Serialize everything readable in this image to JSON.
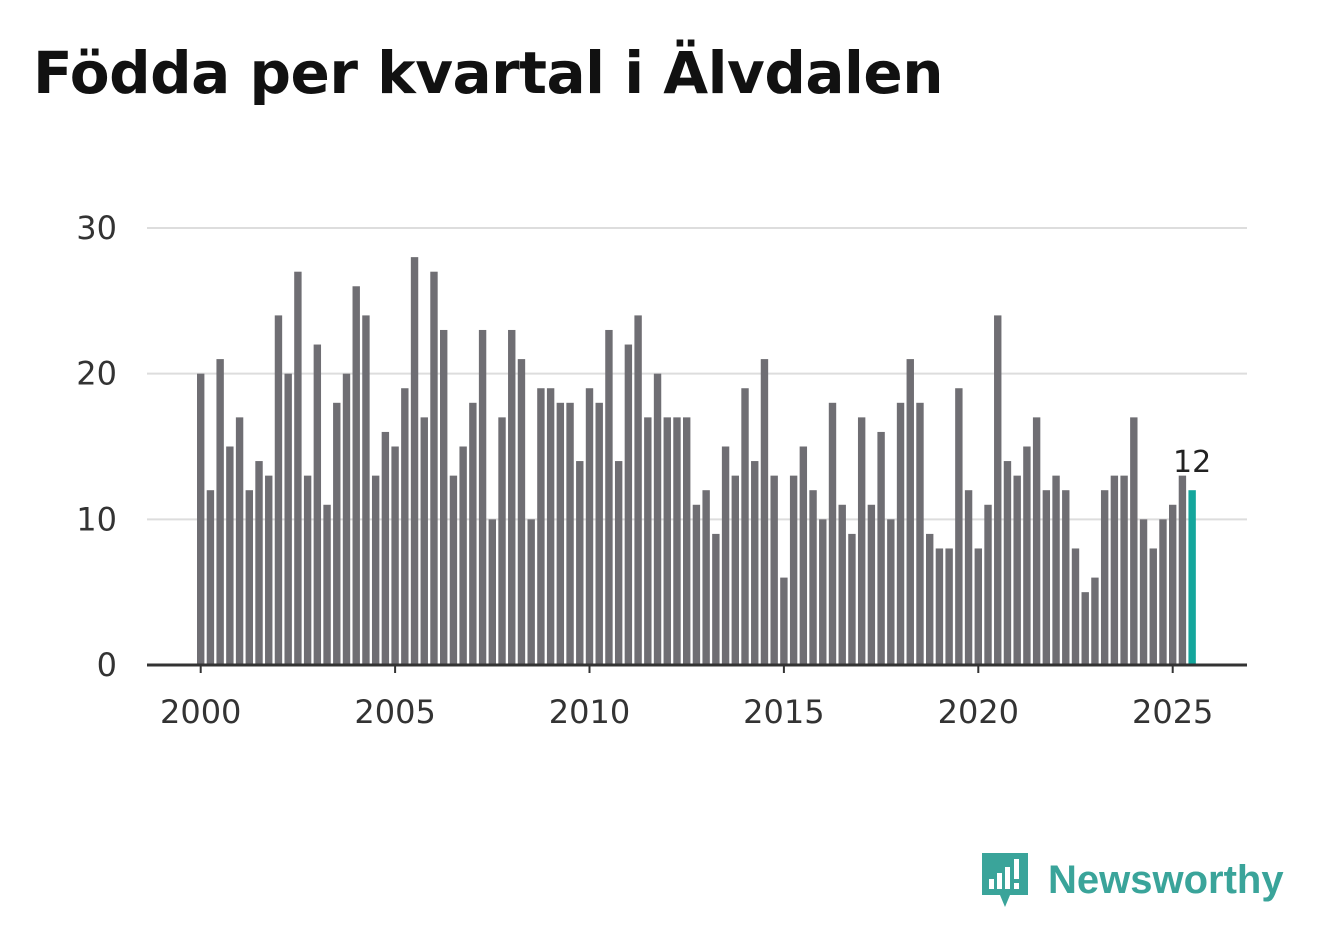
{
  "title": "Födda per kvartal i Älvdalen",
  "brand": {
    "name": "Newsworthy",
    "icon": "newsworthy-logo-icon"
  },
  "colors": {
    "bar": "#6f6e73",
    "highlight": "#14a69c",
    "grid": "#dddddd",
    "axis": "#333333",
    "brand": "#3aa49a"
  },
  "chart_data": {
    "type": "bar",
    "title": "Födda per kvartal i Älvdalen",
    "xlabel": "",
    "ylabel": "",
    "ylim": [
      0,
      30
    ],
    "yticks": [
      0,
      10,
      20,
      30
    ],
    "xticks": [
      "2000",
      "2005",
      "2010",
      "2015",
      "2020",
      "2025"
    ],
    "start": "2000 Q1",
    "frequency": "quarterly",
    "grid": true,
    "highlight_last": true,
    "last_label": "12",
    "values": [
      20,
      12,
      21,
      15,
      17,
      12,
      14,
      13,
      24,
      20,
      27,
      13,
      22,
      11,
      18,
      20,
      26,
      24,
      13,
      16,
      15,
      19,
      28,
      17,
      27,
      23,
      13,
      15,
      18,
      23,
      10,
      17,
      23,
      21,
      10,
      19,
      19,
      18,
      18,
      14,
      19,
      18,
      23,
      14,
      22,
      24,
      17,
      20,
      17,
      17,
      17,
      11,
      12,
      9,
      15,
      13,
      19,
      14,
      21,
      13,
      6,
      13,
      15,
      12,
      10,
      18,
      11,
      9,
      17,
      11,
      16,
      10,
      18,
      21,
      18,
      9,
      8,
      8,
      19,
      12,
      8,
      11,
      24,
      14,
      13,
      15,
      17,
      12,
      13,
      12,
      8,
      5,
      6,
      12,
      13,
      13,
      17,
      10,
      8,
      10,
      11,
      13,
      12
    ]
  }
}
